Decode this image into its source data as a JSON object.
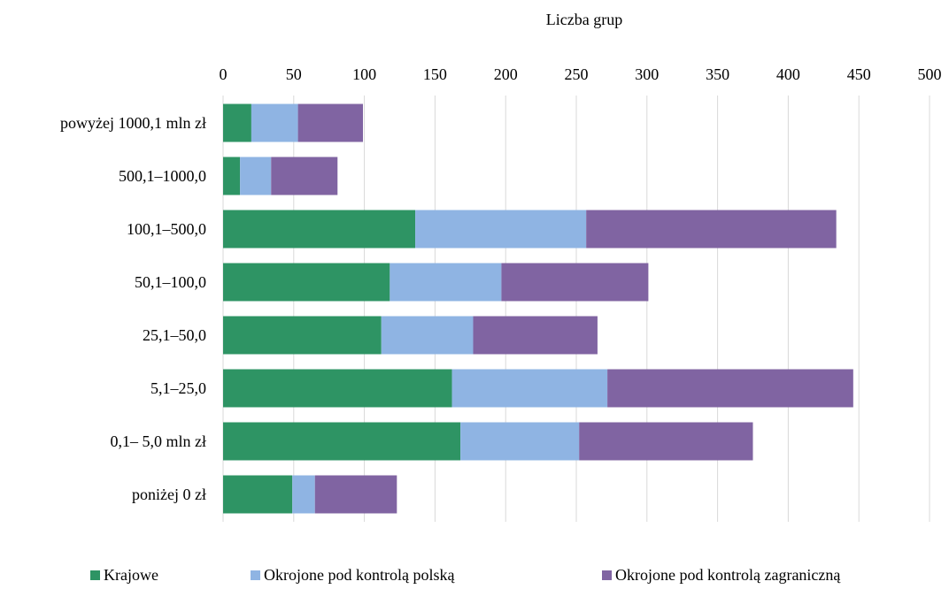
{
  "chart_data": {
    "type": "bar",
    "orientation": "horizontal",
    "stacked": true,
    "xlabel": "Liczba grup",
    "xlim": [
      0,
      500
    ],
    "xticks": [
      0,
      50,
      100,
      150,
      200,
      250,
      300,
      350,
      400,
      450,
      500
    ],
    "x_axis_position": "top",
    "grid": true,
    "legend_position": "bottom",
    "categories": [
      "powyżej 1000,1 mln zł",
      "500,1–1000,0",
      "100,1–500,0",
      "50,1–100,0",
      "25,1–50,0",
      "5,1–25,0",
      "0,1– 5,0 mln zł",
      "poniżej 0 zł"
    ],
    "series": [
      {
        "name": "Krajowe",
        "color": "#2E9464",
        "values": [
          20,
          12,
          136,
          118,
          112,
          162,
          168,
          49
        ]
      },
      {
        "name": "Okrojone pod kontrolą polską",
        "color": "#8FB4E3",
        "values": [
          33,
          22,
          121,
          79,
          65,
          110,
          84,
          16
        ]
      },
      {
        "name": "Okrojone pod kontrolą zagraniczną",
        "color": "#8064A2",
        "values": [
          46,
          47,
          177,
          104,
          88,
          174,
          123,
          58
        ]
      }
    ]
  }
}
